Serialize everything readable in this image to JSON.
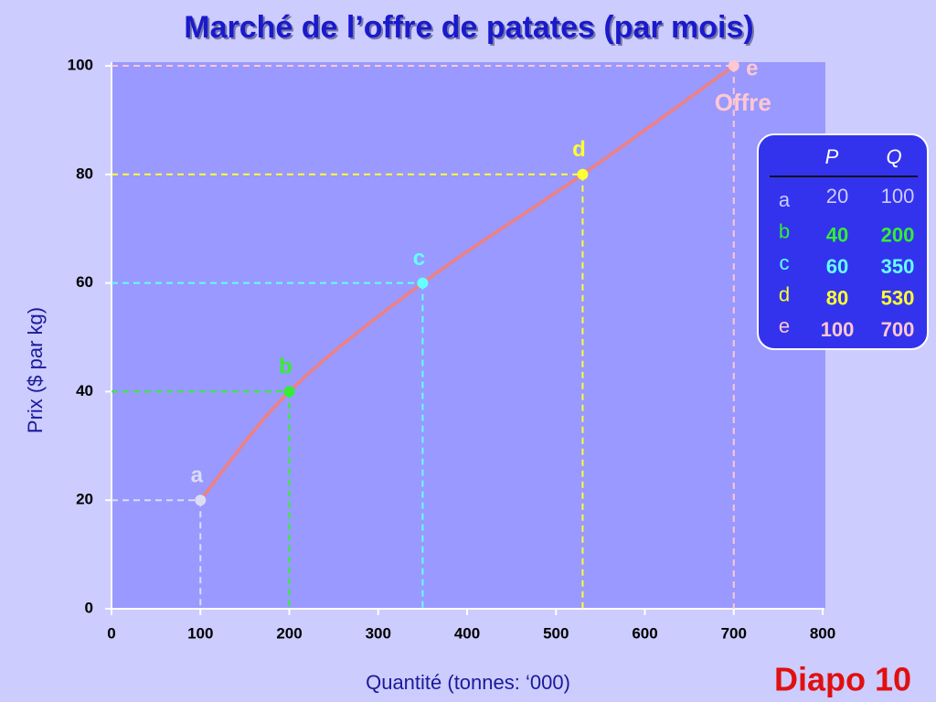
{
  "chart_data": {
    "type": "line",
    "title": "Marché de l’offre de patates (par mois)",
    "x_label": "Quantité (tonnes: ‘000)",
    "y_label": "Prix ($ par kg)",
    "xlim": [
      0,
      800
    ],
    "xticks": [
      0,
      100,
      200,
      300,
      400,
      500,
      600,
      700,
      800
    ],
    "ylim": [
      0,
      100
    ],
    "yticks": [
      0,
      20,
      40,
      60,
      80,
      100
    ],
    "series": [
      {
        "name": "Offre",
        "color": "#f08080",
        "x": [
          100,
          200,
          350,
          530,
          700
        ],
        "values": [
          20,
          40,
          60,
          80,
          100
        ],
        "point_labels": [
          "a",
          "b",
          "c",
          "d",
          "e"
        ],
        "point_colors": [
          "#dcdcf4",
          "#33ee33",
          "#66ffff",
          "#ffff33",
          "#ffc8d0"
        ]
      }
    ],
    "table_headers": [
      "P",
      "Q"
    ],
    "slide_label": "Diapo 10"
  }
}
